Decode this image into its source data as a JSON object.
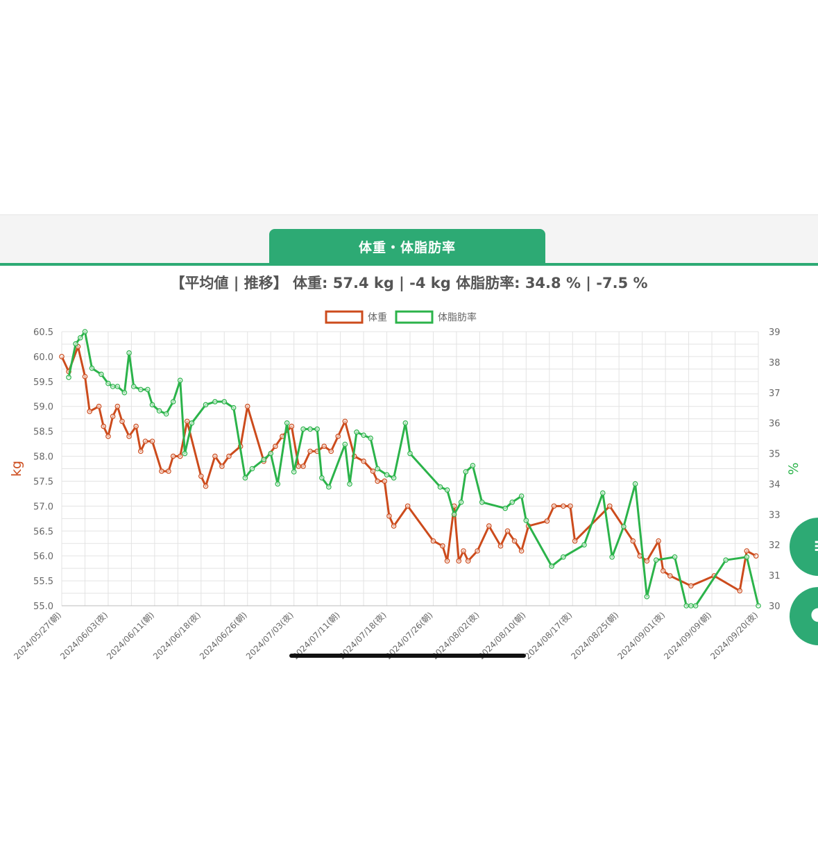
{
  "tab": {
    "label": "体重・体脂肪率"
  },
  "summary": {
    "text": "【平均値 | 推移】 体重: 57.4 kg | -4 kg 体脂肪率: 34.8 % | -7.5 %"
  },
  "colors": {
    "weight": "#cc4b1c",
    "fat": "#2bb34a",
    "accent": "#2daa74",
    "grid": "#e3e3e3"
  },
  "icons": {
    "fab1": "list-icon",
    "fab2": "chat-icon"
  },
  "chart_data": {
    "type": "line",
    "legend": [
      "体重",
      "体脂肪率"
    ],
    "legend_position": "top",
    "grid": true,
    "y_left": {
      "label": "kg",
      "min": 55.0,
      "max": 60.5,
      "ticks": [
        "60.5",
        "60.0",
        "59.5",
        "59.0",
        "58.5",
        "58.0",
        "57.5",
        "57.0",
        "56.5",
        "56.0",
        "55.5",
        "55.0"
      ]
    },
    "y_right": {
      "label": "%",
      "min": 30,
      "max": 39,
      "ticks": [
        "39",
        "38",
        "37",
        "36",
        "35",
        "34",
        "33",
        "32",
        "31",
        "30"
      ]
    },
    "x_ticks": [
      "2024/05/27(朝)",
      "2024/06/03(夜)",
      "2024/06/11(朝)",
      "2024/06/18(夜)",
      "2024/06/26(朝)",
      "2024/07/03(夜)",
      "2024/07/11(朝)",
      "2024/07/18(夜)",
      "2024/07/26(朝)",
      "2024/08/02(夜)",
      "2024/08/10(朝)",
      "2024/08/17(夜)",
      "2024/08/25(朝)",
      "2024/09/01(夜)",
      "2024/09/09(朝)",
      "2024/09/20(夜)"
    ],
    "series": [
      {
        "name": "体重",
        "axis": "left",
        "points": [
          [
            0,
            60.0
          ],
          [
            0.15,
            59.7
          ],
          [
            0.35,
            60.2
          ],
          [
            0.5,
            59.6
          ],
          [
            0.6,
            58.9
          ],
          [
            0.8,
            59.0
          ],
          [
            0.9,
            58.6
          ],
          [
            1.0,
            58.4
          ],
          [
            1.1,
            58.8
          ],
          [
            1.2,
            59.0
          ],
          [
            1.3,
            58.7
          ],
          [
            1.45,
            58.4
          ],
          [
            1.6,
            58.6
          ],
          [
            1.7,
            58.1
          ],
          [
            1.8,
            58.3
          ],
          [
            1.95,
            58.3
          ],
          [
            2.15,
            57.7
          ],
          [
            2.3,
            57.7
          ],
          [
            2.4,
            58.0
          ],
          [
            2.55,
            58.0
          ],
          [
            2.7,
            58.7
          ],
          [
            3.0,
            57.6
          ],
          [
            3.1,
            57.4
          ],
          [
            3.3,
            58.0
          ],
          [
            3.45,
            57.8
          ],
          [
            3.6,
            58.0
          ],
          [
            3.85,
            58.2
          ],
          [
            4.0,
            59.0
          ],
          [
            4.35,
            57.9
          ],
          [
            4.6,
            58.2
          ],
          [
            4.75,
            58.4
          ],
          [
            4.95,
            58.6
          ],
          [
            5.1,
            57.8
          ],
          [
            5.2,
            57.8
          ],
          [
            5.35,
            58.1
          ],
          [
            5.5,
            58.1
          ],
          [
            5.65,
            58.2
          ],
          [
            5.8,
            58.1
          ],
          [
            5.95,
            58.4
          ],
          [
            6.1,
            58.7
          ],
          [
            6.3,
            58.0
          ],
          [
            6.5,
            57.9
          ],
          [
            6.7,
            57.7
          ],
          [
            6.8,
            57.5
          ],
          [
            6.95,
            57.5
          ],
          [
            7.05,
            56.8
          ],
          [
            7.15,
            56.6
          ],
          [
            7.45,
            57.0
          ],
          [
            8.0,
            56.3
          ],
          [
            8.2,
            56.2
          ],
          [
            8.3,
            55.9
          ],
          [
            8.45,
            57.0
          ],
          [
            8.55,
            55.9
          ],
          [
            8.65,
            56.1
          ],
          [
            8.75,
            55.9
          ],
          [
            8.95,
            56.1
          ],
          [
            9.2,
            56.6
          ],
          [
            9.45,
            56.2
          ],
          [
            9.6,
            56.5
          ],
          [
            9.75,
            56.3
          ],
          [
            9.9,
            56.1
          ],
          [
            10.05,
            56.6
          ],
          [
            10.45,
            56.7
          ],
          [
            10.6,
            57.0
          ],
          [
            10.8,
            57.0
          ],
          [
            10.95,
            57.0
          ],
          [
            11.05,
            56.3
          ],
          [
            11.8,
            57.0
          ],
          [
            12.3,
            56.3
          ],
          [
            12.45,
            56.0
          ],
          [
            12.6,
            55.9
          ],
          [
            12.85,
            56.3
          ],
          [
            12.95,
            55.7
          ],
          [
            13.1,
            55.6
          ],
          [
            13.55,
            55.4
          ],
          [
            14.05,
            55.6
          ],
          [
            14.6,
            55.3
          ],
          [
            14.75,
            56.1
          ],
          [
            14.95,
            56.0
          ]
        ]
      },
      {
        "name": "体脂肪率",
        "axis": "right",
        "points": [
          [
            0.15,
            37.5
          ],
          [
            0.3,
            38.6
          ],
          [
            0.4,
            38.8
          ],
          [
            0.5,
            39.0
          ],
          [
            0.65,
            37.8
          ],
          [
            0.85,
            37.6
          ],
          [
            1.0,
            37.3
          ],
          [
            1.1,
            37.2
          ],
          [
            1.2,
            37.2
          ],
          [
            1.35,
            37.0
          ],
          [
            1.45,
            38.3
          ],
          [
            1.55,
            37.2
          ],
          [
            1.7,
            37.1
          ],
          [
            1.85,
            37.1
          ],
          [
            1.95,
            36.6
          ],
          [
            2.1,
            36.4
          ],
          [
            2.25,
            36.3
          ],
          [
            2.4,
            36.7
          ],
          [
            2.55,
            37.4
          ],
          [
            2.65,
            35.0
          ],
          [
            2.8,
            36.0
          ],
          [
            3.1,
            36.6
          ],
          [
            3.3,
            36.7
          ],
          [
            3.5,
            36.7
          ],
          [
            3.7,
            36.5
          ],
          [
            3.95,
            34.2
          ],
          [
            4.1,
            34.5
          ],
          [
            4.35,
            34.8
          ],
          [
            4.5,
            35.0
          ],
          [
            4.65,
            34.0
          ],
          [
            4.85,
            36.0
          ],
          [
            5.0,
            34.4
          ],
          [
            5.2,
            35.8
          ],
          [
            5.35,
            35.8
          ],
          [
            5.5,
            35.8
          ],
          [
            5.6,
            34.2
          ],
          [
            5.75,
            33.9
          ],
          [
            6.1,
            35.3
          ],
          [
            6.2,
            34.0
          ],
          [
            6.35,
            35.7
          ],
          [
            6.5,
            35.6
          ],
          [
            6.65,
            35.5
          ],
          [
            6.8,
            34.5
          ],
          [
            7.0,
            34.3
          ],
          [
            7.15,
            34.2
          ],
          [
            7.4,
            36.0
          ],
          [
            7.5,
            35.0
          ],
          [
            8.15,
            33.9
          ],
          [
            8.3,
            33.8
          ],
          [
            8.45,
            33.0
          ],
          [
            8.6,
            33.4
          ],
          [
            8.7,
            34.4
          ],
          [
            8.85,
            34.6
          ],
          [
            9.05,
            33.4
          ],
          [
            9.55,
            33.2
          ],
          [
            9.7,
            33.4
          ],
          [
            9.9,
            33.6
          ],
          [
            10.0,
            32.8
          ],
          [
            10.55,
            31.3
          ],
          [
            10.8,
            31.6
          ],
          [
            11.25,
            32.0
          ],
          [
            11.65,
            33.7
          ],
          [
            11.85,
            31.6
          ],
          [
            12.1,
            32.6
          ],
          [
            12.35,
            34.0
          ],
          [
            12.6,
            30.3
          ],
          [
            12.8,
            31.5
          ],
          [
            13.2,
            31.6
          ],
          [
            13.45,
            30.0
          ],
          [
            13.55,
            30.0
          ],
          [
            13.65,
            30.0
          ],
          [
            14.3,
            31.5
          ],
          [
            14.75,
            31.6
          ],
          [
            15.0,
            30.0
          ]
        ]
      }
    ]
  }
}
